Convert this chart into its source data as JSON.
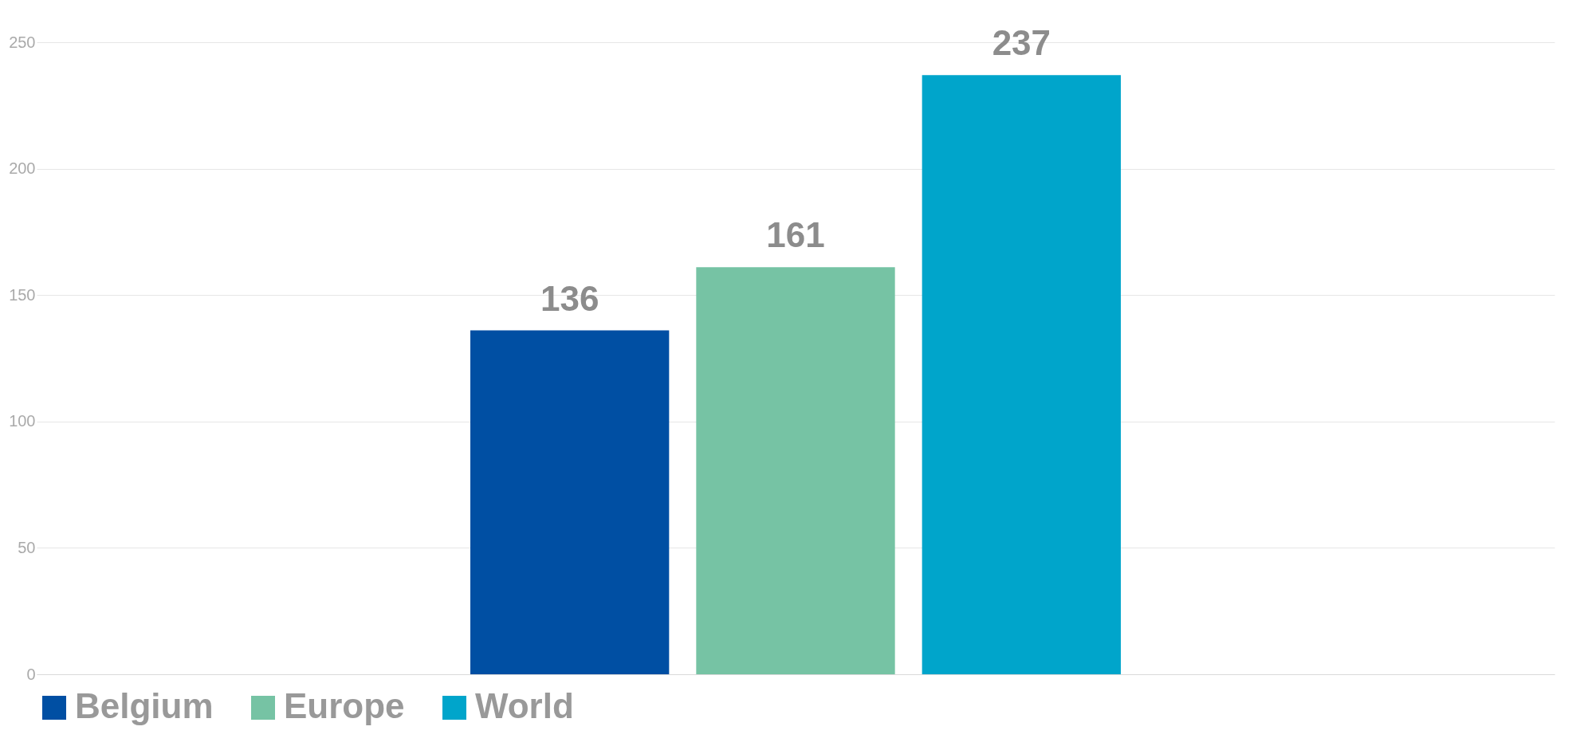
{
  "chart_data": {
    "type": "bar",
    "categories": [
      null
    ],
    "series": [
      {
        "name": "Belgium",
        "color": "#004fa3",
        "values": [
          136
        ]
      },
      {
        "name": "Europe",
        "color": "#76c3a4",
        "values": [
          161
        ]
      },
      {
        "name": "World",
        "color": "#00a5cb",
        "values": [
          237
        ]
      }
    ],
    "ylim": [
      0,
      250
    ],
    "yticks": [
      0,
      50,
      100,
      150,
      200,
      250
    ],
    "grid": "y",
    "legend": "bottom",
    "data_labels": true
  }
}
